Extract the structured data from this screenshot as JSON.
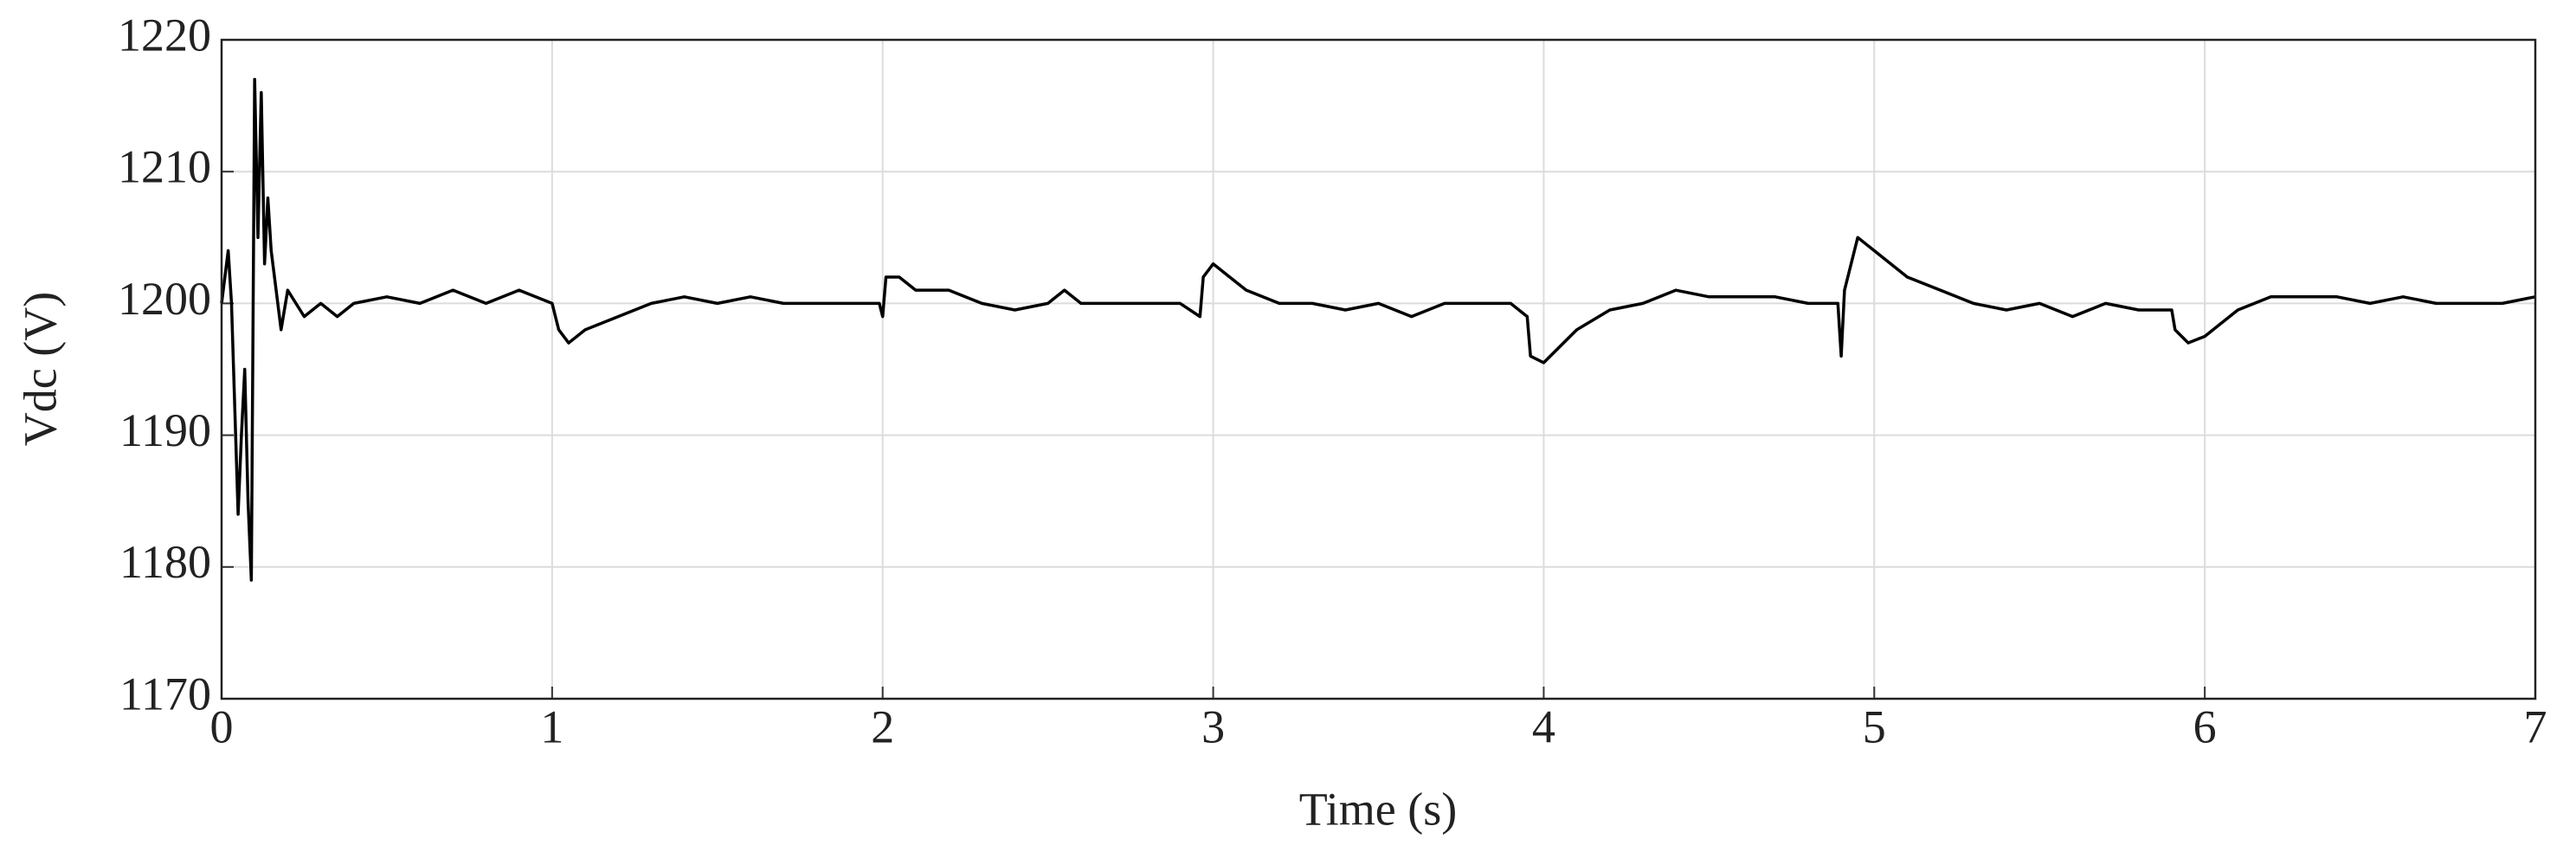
{
  "chart_data": {
    "type": "line",
    "xlabel": "Time (s)",
    "ylabel": "Vdc (V)",
    "xlim": [
      0,
      7
    ],
    "ylim": [
      1170,
      1220
    ],
    "xticks": [
      0,
      1,
      2,
      3,
      4,
      5,
      6,
      7
    ],
    "yticks": [
      1170,
      1180,
      1190,
      1200,
      1210,
      1220
    ],
    "grid": true,
    "x": [
      0,
      0.01,
      0.02,
      0.03,
      0.05,
      0.06,
      0.07,
      0.08,
      0.09,
      0.1,
      0.11,
      0.12,
      0.13,
      0.14,
      0.15,
      0.17,
      0.18,
      0.2,
      0.25,
      0.3,
      0.35,
      0.4,
      0.5,
      0.6,
      0.7,
      0.8,
      0.9,
      1.0,
      1.02,
      1.05,
      1.1,
      1.2,
      1.3,
      1.4,
      1.5,
      1.6,
      1.7,
      1.8,
      1.9,
      1.99,
      2.0,
      2.01,
      2.05,
      2.1,
      2.2,
      2.3,
      2.4,
      2.5,
      2.55,
      2.6,
      2.7,
      2.8,
      2.9,
      2.96,
      2.97,
      3.0,
      3.05,
      3.1,
      3.2,
      3.3,
      3.4,
      3.5,
      3.6,
      3.7,
      3.8,
      3.9,
      3.95,
      3.96,
      4.0,
      4.1,
      4.2,
      4.3,
      4.4,
      4.5,
      4.6,
      4.7,
      4.8,
      4.89,
      4.9,
      4.91,
      4.95,
      5.0,
      5.1,
      5.2,
      5.3,
      5.4,
      5.5,
      5.6,
      5.7,
      5.8,
      5.9,
      5.91,
      5.95,
      6.0,
      6.1,
      6.2,
      6.3,
      6.4,
      6.5,
      6.6,
      6.7,
      6.8,
      6.9,
      7.0
    ],
    "series": [
      {
        "color": "#000000",
        "values": [
          1200,
          1202,
          1204,
          1200,
          1184,
          1190,
          1195,
          1185,
          1179,
          1217,
          1205,
          1216,
          1203,
          1208,
          1204,
          1200,
          1198,
          1201,
          1199,
          1200,
          1199,
          1200,
          1200.5,
          1200,
          1201,
          1200,
          1201,
          1200,
          1198,
          1197,
          1198,
          1199,
          1200,
          1200.5,
          1200,
          1200.5,
          1200,
          1200,
          1200,
          1200,
          1199,
          1202,
          1202,
          1201,
          1201,
          1200,
          1199.5,
          1200,
          1201,
          1200,
          1200,
          1200,
          1200,
          1199,
          1202,
          1203,
          1202,
          1201,
          1200,
          1200,
          1199.5,
          1200,
          1199,
          1200,
          1200,
          1200,
          1199,
          1196,
          1195.5,
          1198,
          1199.5,
          1200,
          1201,
          1200.5,
          1200.5,
          1200.5,
          1200,
          1200,
          1196,
          1201,
          1205,
          1204,
          1202,
          1201,
          1200,
          1199.5,
          1200,
          1199,
          1200,
          1199.5,
          1199.5,
          1198,
          1197,
          1197.5,
          1199.5,
          1200.5,
          1200.5,
          1200.5,
          1200,
          1200.5,
          1200,
          1200,
          1200,
          1200.5
        ]
      }
    ]
  }
}
